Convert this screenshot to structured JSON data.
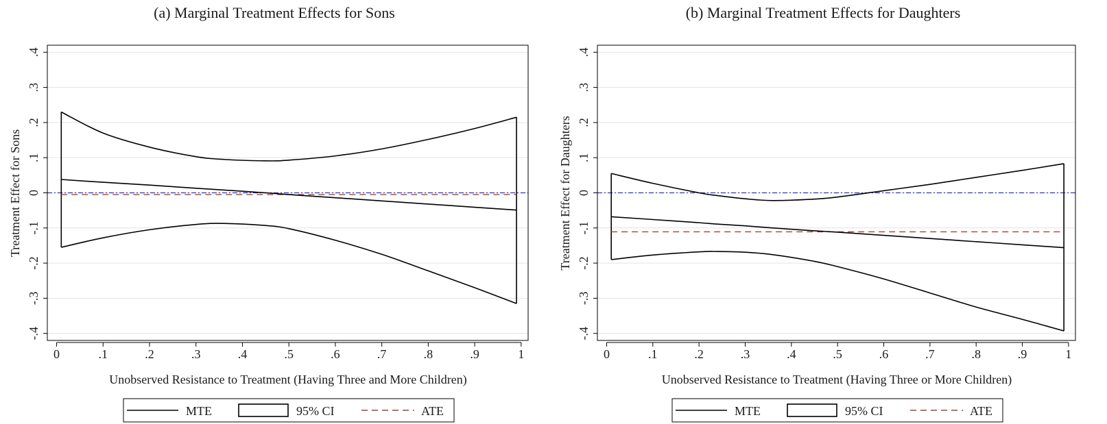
{
  "chart_data": [
    {
      "type": "line",
      "title": "(a) Marginal Treatment Effects for Sons",
      "xlabel": "Unobserved Resistance to Treatment (Having Three and More Children)",
      "ylabel": "Treatment Effect for Sons",
      "xlim": [
        0,
        1
      ],
      "ylim": [
        -0.4,
        0.4
      ],
      "xticks": [
        0,
        0.1,
        0.2,
        0.3,
        0.4,
        0.5,
        0.6,
        0.7,
        0.8,
        0.9,
        1
      ],
      "xtick_labels": [
        "0",
        ".1",
        ".2",
        ".3",
        ".4",
        ".5",
        ".6",
        ".7",
        ".8",
        ".9",
        "1"
      ],
      "yticks": [
        -0.4,
        -0.3,
        -0.2,
        -0.1,
        0,
        0.1,
        0.2,
        0.3,
        0.4
      ],
      "ytick_labels": [
        "-.4",
        "-.3",
        "-.2",
        "-.1",
        "0",
        ".1",
        ".2",
        ".3",
        ".4"
      ],
      "grid": true,
      "legend": "bottom",
      "x": [
        0.01,
        0.1,
        0.2,
        0.3,
        0.36,
        0.45,
        0.5,
        0.6,
        0.7,
        0.8,
        0.9,
        0.99
      ],
      "series": [
        {
          "name": "MTE",
          "values": [
            0.038,
            0.03,
            0.022,
            0.013,
            0.008,
            0.0,
            -0.005,
            -0.014,
            -0.023,
            -0.032,
            -0.041,
            -0.049
          ],
          "color": "#000000",
          "style": "solid"
        },
        {
          "name": "95% CI",
          "role": "upper",
          "values": [
            0.23,
            0.17,
            0.13,
            0.103,
            0.095,
            0.091,
            0.093,
            0.105,
            0.125,
            0.152,
            0.183,
            0.215
          ],
          "color": "#000000",
          "style": "solid"
        },
        {
          "name": "95% CI",
          "role": "lower",
          "values": [
            -0.155,
            -0.128,
            -0.105,
            -0.09,
            -0.087,
            -0.093,
            -0.102,
            -0.135,
            -0.175,
            -0.222,
            -0.27,
            -0.315
          ],
          "color": "#000000",
          "style": "solid"
        },
        {
          "name": "ATE",
          "values": [
            -0.005,
            -0.005,
            -0.005,
            -0.005,
            -0.005,
            -0.005,
            -0.005,
            -0.005,
            -0.005,
            -0.005,
            -0.005,
            -0.005
          ],
          "color": "#a0403d",
          "style": "dashed"
        }
      ],
      "reference_line": {
        "y": 0,
        "color": "#3030d0",
        "style": "dash-dot"
      }
    },
    {
      "type": "line",
      "title": "(b) Marginal Treatment Effects for Daughters",
      "xlabel": "Unobserved Resistance to Treatment (Having Three or More Children)",
      "ylabel": "Treatment Effect for Daughters",
      "xlim": [
        0,
        1
      ],
      "ylim": [
        -0.4,
        0.4
      ],
      "xticks": [
        0,
        0.1,
        0.2,
        0.3,
        0.4,
        0.5,
        0.6,
        0.7,
        0.8,
        0.9,
        1
      ],
      "xtick_labels": [
        "0",
        ".1",
        ".2",
        ".3",
        ".4",
        ".5",
        ".6",
        ".7",
        ".8",
        ".9",
        "1"
      ],
      "yticks": [
        -0.4,
        -0.3,
        -0.2,
        -0.1,
        0,
        0.1,
        0.2,
        0.3,
        0.4
      ],
      "ytick_labels": [
        "-.4",
        "-.3",
        "-.2",
        "-.1",
        "0",
        ".1",
        ".2",
        ".3",
        ".4"
      ],
      "grid": true,
      "legend": "bottom",
      "x": [
        0.01,
        0.1,
        0.2,
        0.24,
        0.3,
        0.36,
        0.45,
        0.5,
        0.6,
        0.7,
        0.8,
        0.9,
        0.99
      ],
      "series": [
        {
          "name": "MTE",
          "values": [
            -0.068,
            -0.076,
            -0.085,
            -0.089,
            -0.094,
            -0.1,
            -0.108,
            -0.112,
            -0.121,
            -0.13,
            -0.139,
            -0.148,
            -0.156
          ],
          "color": "#000000",
          "style": "solid"
        },
        {
          "name": "95% CI",
          "role": "upper",
          "values": [
            0.055,
            0.027,
            0.0,
            -0.008,
            -0.017,
            -0.022,
            -0.018,
            -0.012,
            0.006,
            0.024,
            0.044,
            0.064,
            0.083
          ],
          "color": "#000000",
          "style": "solid"
        },
        {
          "name": "95% CI",
          "role": "lower",
          "values": [
            -0.19,
            -0.177,
            -0.168,
            -0.167,
            -0.169,
            -0.176,
            -0.195,
            -0.21,
            -0.245,
            -0.285,
            -0.325,
            -0.36,
            -0.393
          ],
          "color": "#000000",
          "style": "solid"
        },
        {
          "name": "ATE",
          "values": [
            -0.111,
            -0.111,
            -0.111,
            -0.111,
            -0.111,
            -0.111,
            -0.111,
            -0.111,
            -0.111,
            -0.111,
            -0.111,
            -0.111,
            -0.111
          ],
          "color": "#a0403d",
          "style": "dashed"
        }
      ],
      "reference_line": {
        "y": 0,
        "color": "#3030d0",
        "style": "dash-dot"
      }
    }
  ],
  "legend_labels": {
    "mte": "MTE",
    "ci": "95% CI",
    "ate": "ATE"
  }
}
